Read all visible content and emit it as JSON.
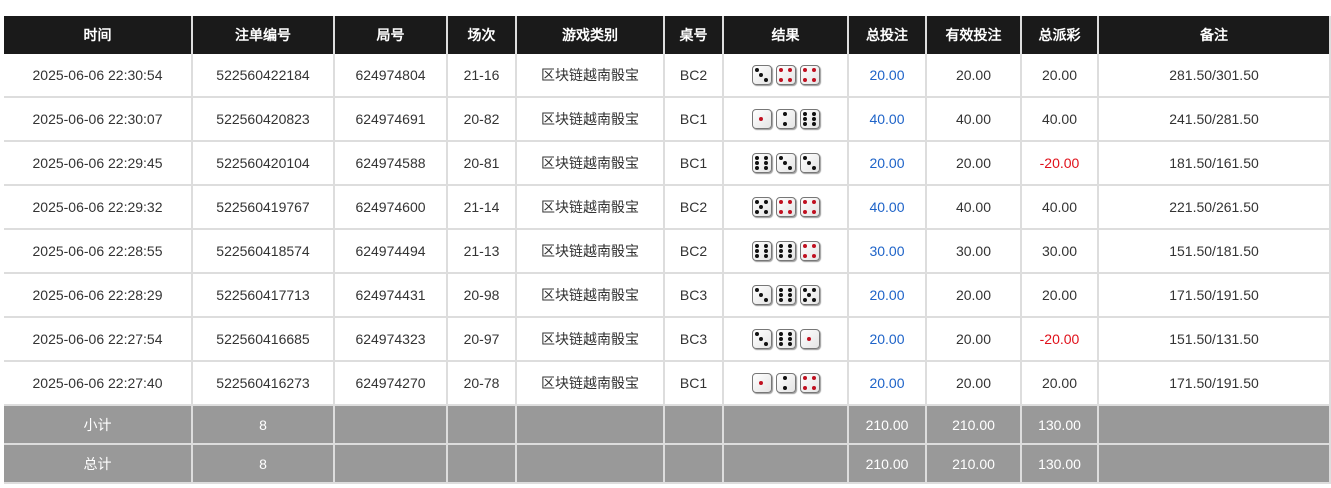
{
  "headers": [
    "时间",
    "注单编号",
    "局号",
    "场次",
    "游戏类别",
    "桌号",
    "结果",
    "总投注",
    "有效投注",
    "总派彩",
    "备注"
  ],
  "rows": [
    {
      "time": "2025-06-06 22:30:54",
      "bet_id": "522560422184",
      "round": "624974804",
      "session": "21-16",
      "game": "区块链越南骰宝",
      "table": "BC2",
      "dice": [
        3,
        4,
        4
      ],
      "total_bet": "20.00",
      "valid_bet": "20.00",
      "payout": "20.00",
      "note": "281.50/301.50"
    },
    {
      "time": "2025-06-06 22:30:07",
      "bet_id": "522560420823",
      "round": "624974691",
      "session": "20-82",
      "game": "区块链越南骰宝",
      "table": "BC1",
      "dice": [
        1,
        2,
        6
      ],
      "total_bet": "40.00",
      "valid_bet": "40.00",
      "payout": "40.00",
      "note": "241.50/281.50"
    },
    {
      "time": "2025-06-06 22:29:45",
      "bet_id": "522560420104",
      "round": "624974588",
      "session": "20-81",
      "game": "区块链越南骰宝",
      "table": "BC1",
      "dice": [
        6,
        3,
        3
      ],
      "total_bet": "20.00",
      "valid_bet": "20.00",
      "payout": "-20.00",
      "note": "181.50/161.50"
    },
    {
      "time": "2025-06-06 22:29:32",
      "bet_id": "522560419767",
      "round": "624974600",
      "session": "21-14",
      "game": "区块链越南骰宝",
      "table": "BC2",
      "dice": [
        5,
        4,
        4
      ],
      "total_bet": "40.00",
      "valid_bet": "40.00",
      "payout": "40.00",
      "note": "221.50/261.50"
    },
    {
      "time": "2025-06-06 22:28:55",
      "bet_id": "522560418574",
      "round": "624974494",
      "session": "21-13",
      "game": "区块链越南骰宝",
      "table": "BC2",
      "dice": [
        6,
        6,
        4
      ],
      "total_bet": "30.00",
      "valid_bet": "30.00",
      "payout": "30.00",
      "note": "151.50/181.50"
    },
    {
      "time": "2025-06-06 22:28:29",
      "bet_id": "522560417713",
      "round": "624974431",
      "session": "20-98",
      "game": "区块链越南骰宝",
      "table": "BC3",
      "dice": [
        3,
        6,
        5
      ],
      "total_bet": "20.00",
      "valid_bet": "20.00",
      "payout": "20.00",
      "note": "171.50/191.50"
    },
    {
      "time": "2025-06-06 22:27:54",
      "bet_id": "522560416685",
      "round": "624974323",
      "session": "20-97",
      "game": "区块链越南骰宝",
      "table": "BC3",
      "dice": [
        3,
        6,
        1
      ],
      "total_bet": "20.00",
      "valid_bet": "20.00",
      "payout": "-20.00",
      "note": "151.50/131.50"
    },
    {
      "time": "2025-06-06 22:27:40",
      "bet_id": "522560416273",
      "round": "624974270",
      "session": "20-78",
      "game": "区块链越南骰宝",
      "table": "BC1",
      "dice": [
        1,
        2,
        4
      ],
      "total_bet": "20.00",
      "valid_bet": "20.00",
      "payout": "20.00",
      "note": "171.50/191.50"
    }
  ],
  "subtotal": {
    "label": "小计",
    "count": "8",
    "total_bet": "210.00",
    "valid_bet": "210.00",
    "payout": "130.00"
  },
  "grand_total": {
    "label": "总计",
    "count": "8",
    "total_bet": "210.00",
    "valid_bet": "210.00",
    "payout": "130.00"
  },
  "colors": {
    "header_bg": "#1a1a1a",
    "bet_blue": "#1e63c8",
    "negative_red": "#e0101a",
    "summary_bg": "#999999"
  }
}
